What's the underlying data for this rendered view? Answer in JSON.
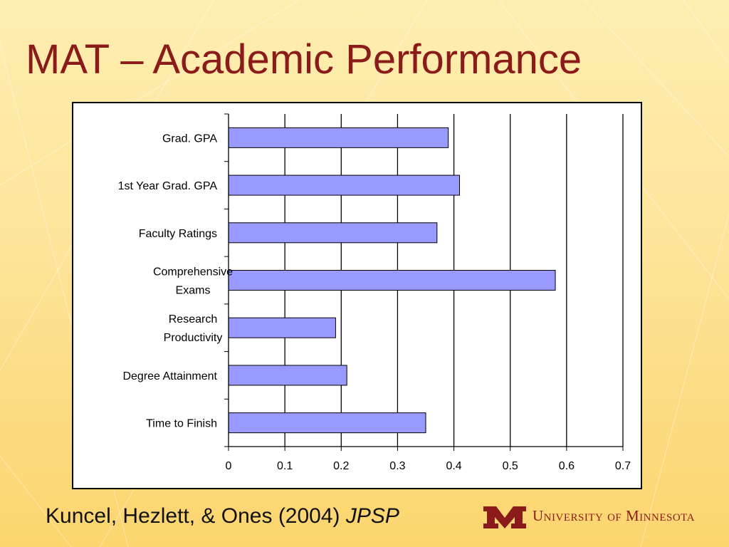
{
  "slide": {
    "title": "MAT – Academic Performance",
    "citation_authors": "Kuncel, Hezlett, & Ones (2004)",
    "citation_journal": "JPSP",
    "logo_text": "University of Minnesota"
  },
  "colors": {
    "title": "#8b1a1a",
    "bar_fill": "#9999ff",
    "bar_stroke": "#000000",
    "background": "#fde49a",
    "logo": "#8b1a1a"
  },
  "chart_data": {
    "type": "bar",
    "orientation": "horizontal",
    "title": "",
    "xlabel": "",
    "ylabel": "",
    "categories": [
      [
        "Grad. GPA"
      ],
      [
        "1st Year Grad. GPA"
      ],
      [
        "Faculty Ratings"
      ],
      [
        "Comprehensive",
        "Exams"
      ],
      [
        "Research",
        "Productivity"
      ],
      [
        "Degree Attainment"
      ],
      [
        "Time to Finish"
      ]
    ],
    "values": [
      0.39,
      0.41,
      0.37,
      0.58,
      0.19,
      0.21,
      0.35
    ],
    "xlim": [
      0,
      0.7
    ],
    "xticks": [
      "0",
      "0.1",
      "0.2",
      "0.3",
      "0.4",
      "0.5",
      "0.6",
      "0.7"
    ],
    "grid": "vertical major gridlines",
    "legend": "none"
  }
}
